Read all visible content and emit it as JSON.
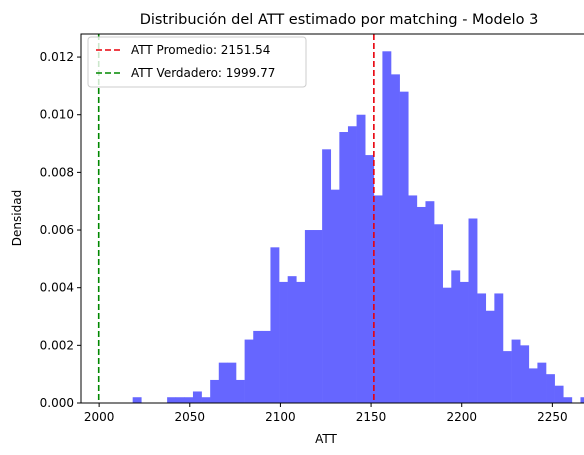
{
  "chart_data": {
    "type": "histogram",
    "title": "Distribución del ATT estimado por matching - Modelo 3",
    "xlabel": "ATT",
    "ylabel": "Densidad",
    "xlim": [
      1990,
      2268
    ],
    "ylim": [
      0,
      0.0128
    ],
    "x_ticks": [
      2000,
      2050,
      2100,
      2150,
      2200,
      2250
    ],
    "y_ticks": [
      0.0,
      0.002,
      0.004,
      0.006,
      0.008,
      0.01,
      0.012
    ],
    "y_tick_labels": [
      "0.000",
      "0.002",
      "0.004",
      "0.006",
      "0.008",
      "0.010",
      "0.012"
    ],
    "bar_color": "#6666ff",
    "grid": false,
    "legend_position": "upper-left",
    "bins": {
      "start": 2018.5,
      "width": 4.75,
      "values": [
        0.0002,
        0.0,
        0.0,
        0.0,
        0.0002,
        0.0002,
        0.0002,
        0.0004,
        0.0002,
        0.0008,
        0.0014,
        0.0014,
        0.0008,
        0.0022,
        0.0025,
        0.0025,
        0.0054,
        0.0042,
        0.0044,
        0.0042,
        0.006,
        0.006,
        0.0088,
        0.0074,
        0.0094,
        0.0096,
        0.01,
        0.0086,
        0.0072,
        0.0122,
        0.0114,
        0.0108,
        0.0072,
        0.0068,
        0.007,
        0.0062,
        0.004,
        0.0046,
        0.0042,
        0.0064,
        0.0038,
        0.0032,
        0.0038,
        0.0018,
        0.0022,
        0.002,
        0.0012,
        0.0014,
        0.001,
        0.0006,
        0.0002,
        0.0,
        0.0002
      ]
    },
    "reference_lines": [
      {
        "name": "ATT Promedio: 2151.54",
        "x": 2151.54,
        "color": "#e8000b",
        "style": "dashed"
      },
      {
        "name": "ATT Verdadero: 1999.77",
        "x": 1999.77,
        "color": "#008800",
        "style": "dashed"
      }
    ]
  }
}
